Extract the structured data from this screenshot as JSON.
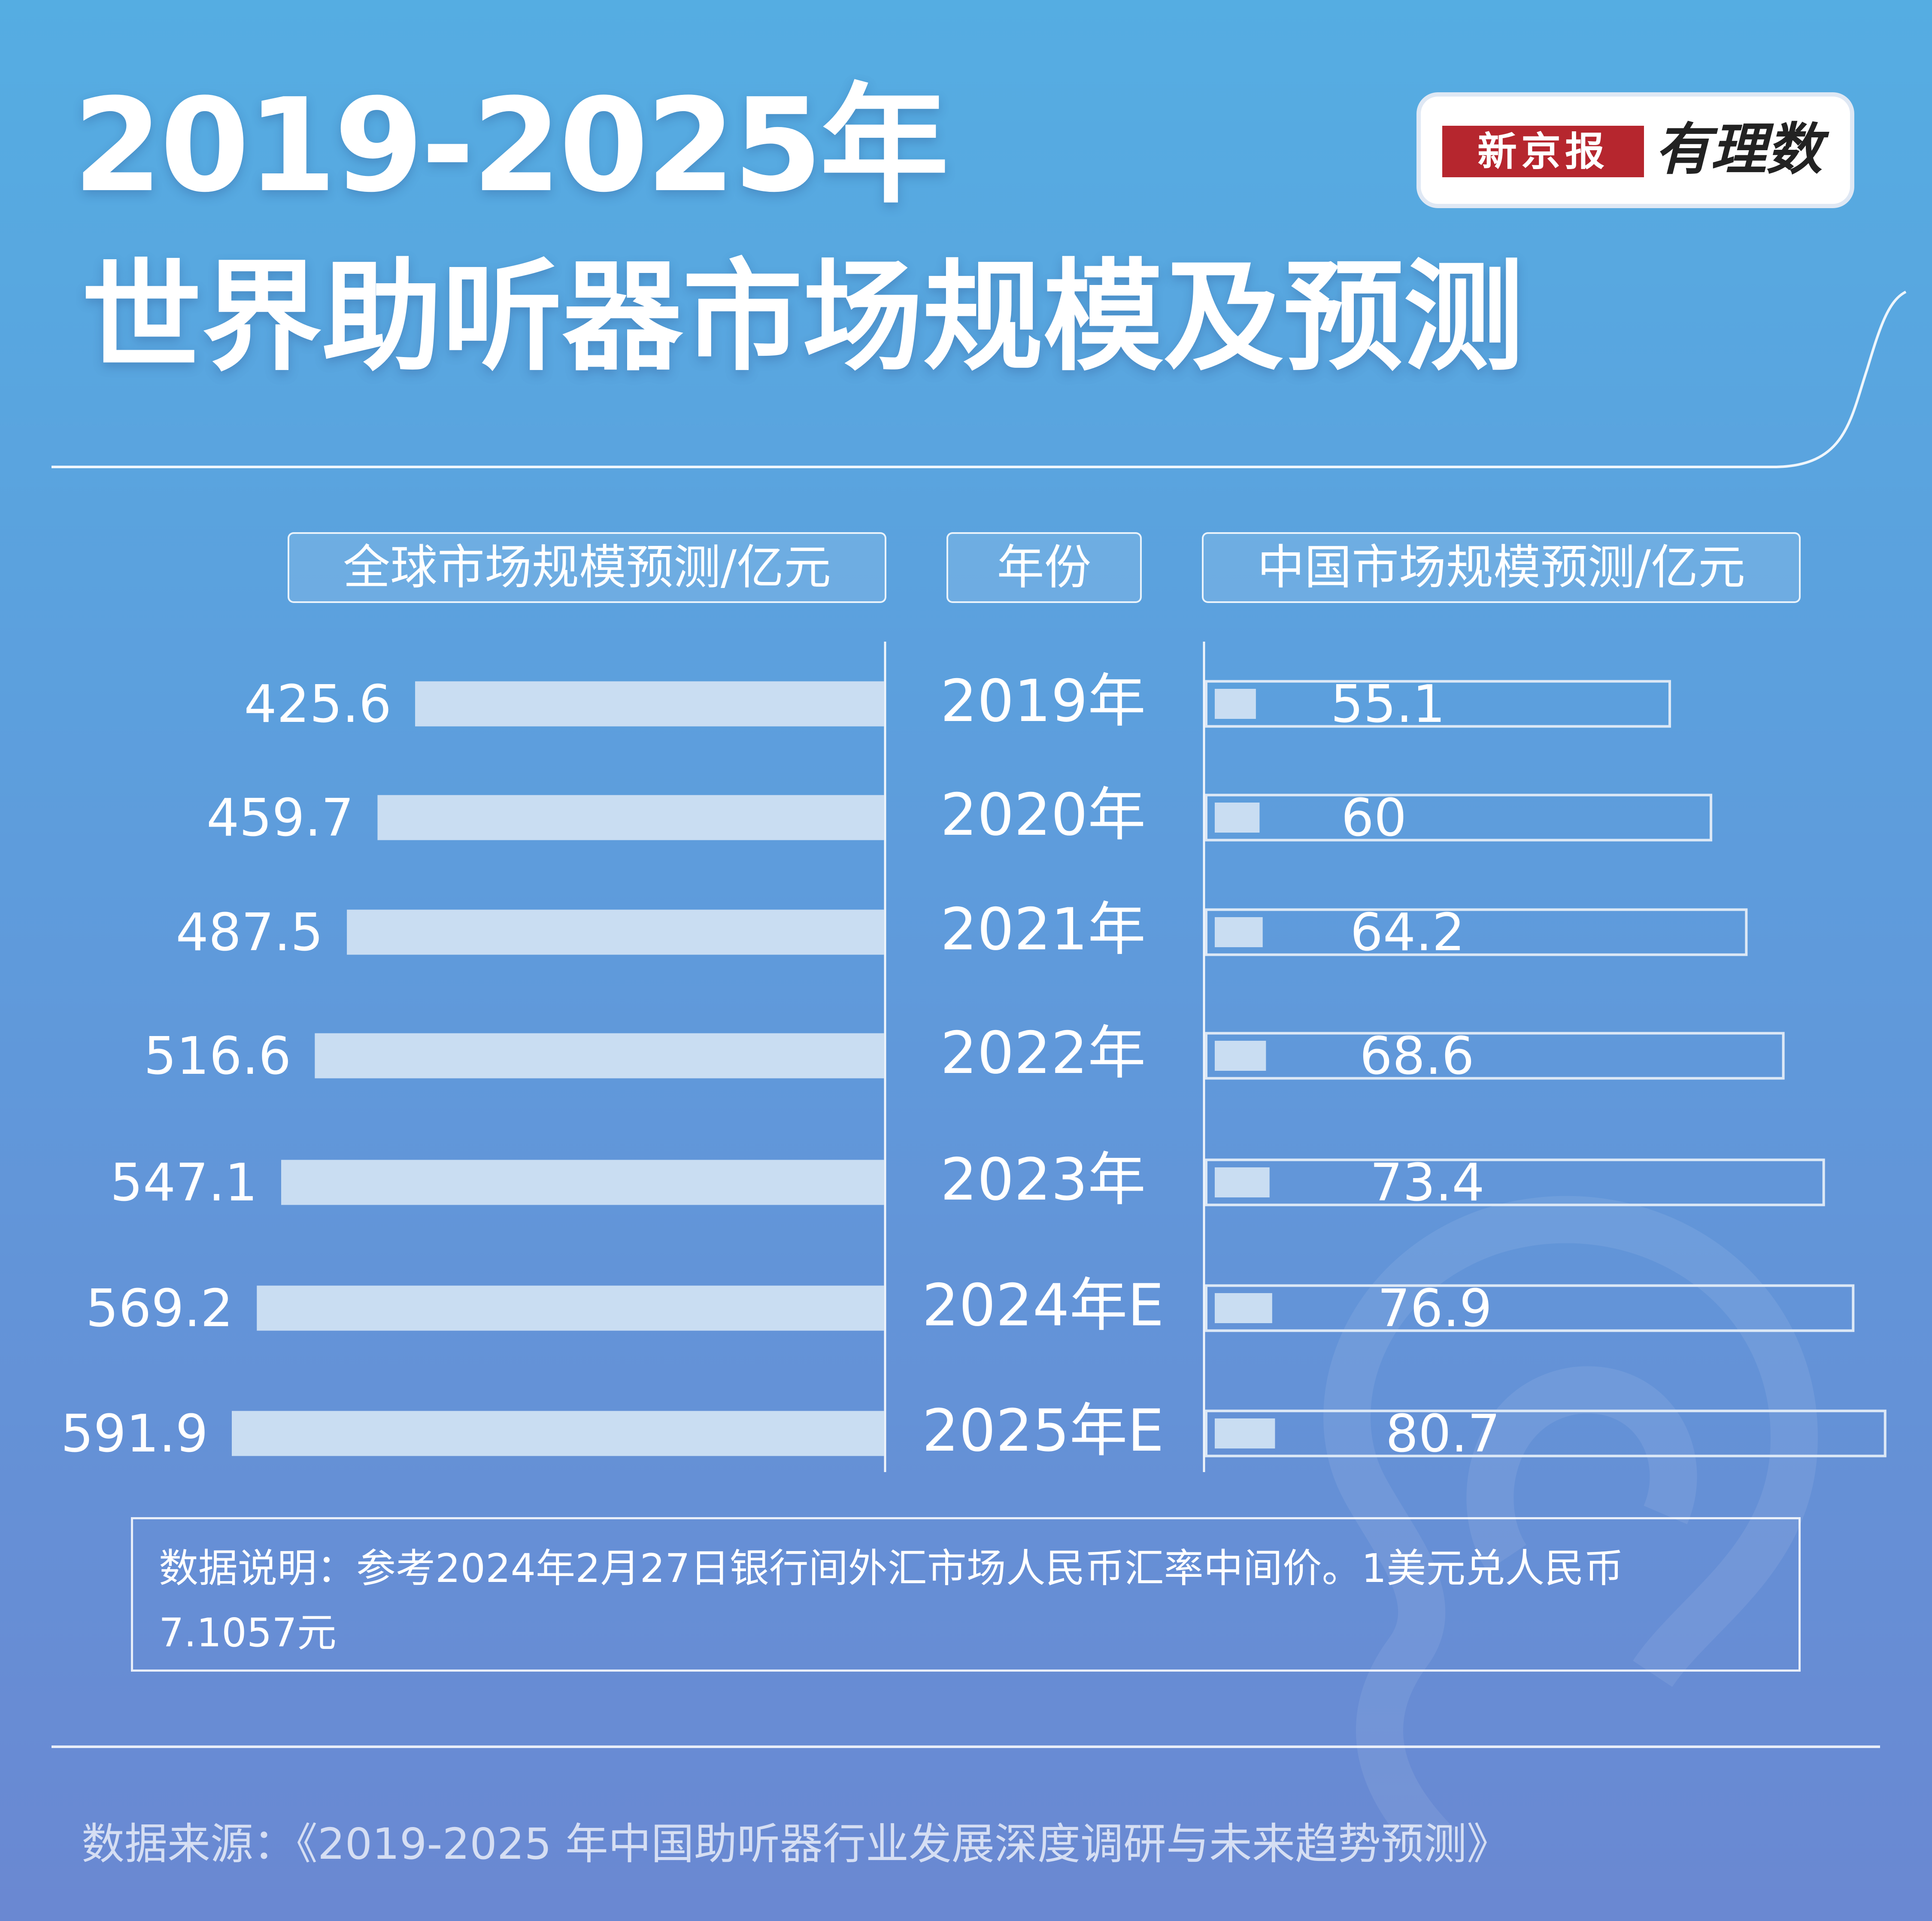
{
  "title_line1": "2019-2025年",
  "title_line2": "世界助听器市场规模及预测",
  "logo": {
    "brand": "新京报",
    "column": "有理数"
  },
  "headers": {
    "global": "全球市场规模预测/亿元",
    "year": "年份",
    "china": "中国市场规模预测/亿元"
  },
  "chart_data": {
    "type": "bar",
    "categories": [
      "2019年",
      "2020年",
      "2021年",
      "2022年",
      "2023年",
      "2024年E",
      "2025年E"
    ],
    "series": [
      {
        "name": "全球市场规模预测/亿元",
        "values": [
          425.6,
          459.7,
          487.5,
          516.6,
          547.1,
          569.2,
          591.9
        ]
      },
      {
        "name": "中国市场规模预测/亿元",
        "values": [
          "55.1",
          "60",
          "64.2",
          "68.6",
          "73.4",
          "76.9",
          "80.7"
        ]
      }
    ],
    "colors": {
      "bar": "#C9DDF2",
      "outline": "#DCE8F6",
      "background": "#5E9CDC"
    }
  },
  "note": "数据说明：参考2024年2月27日银行间外汇市场人民币汇率中间价。1美元兑人民币7.1057元",
  "source": "数据来源：《2019-2025 年中国助听器行业发展深度调研与未来趋势预测》"
}
